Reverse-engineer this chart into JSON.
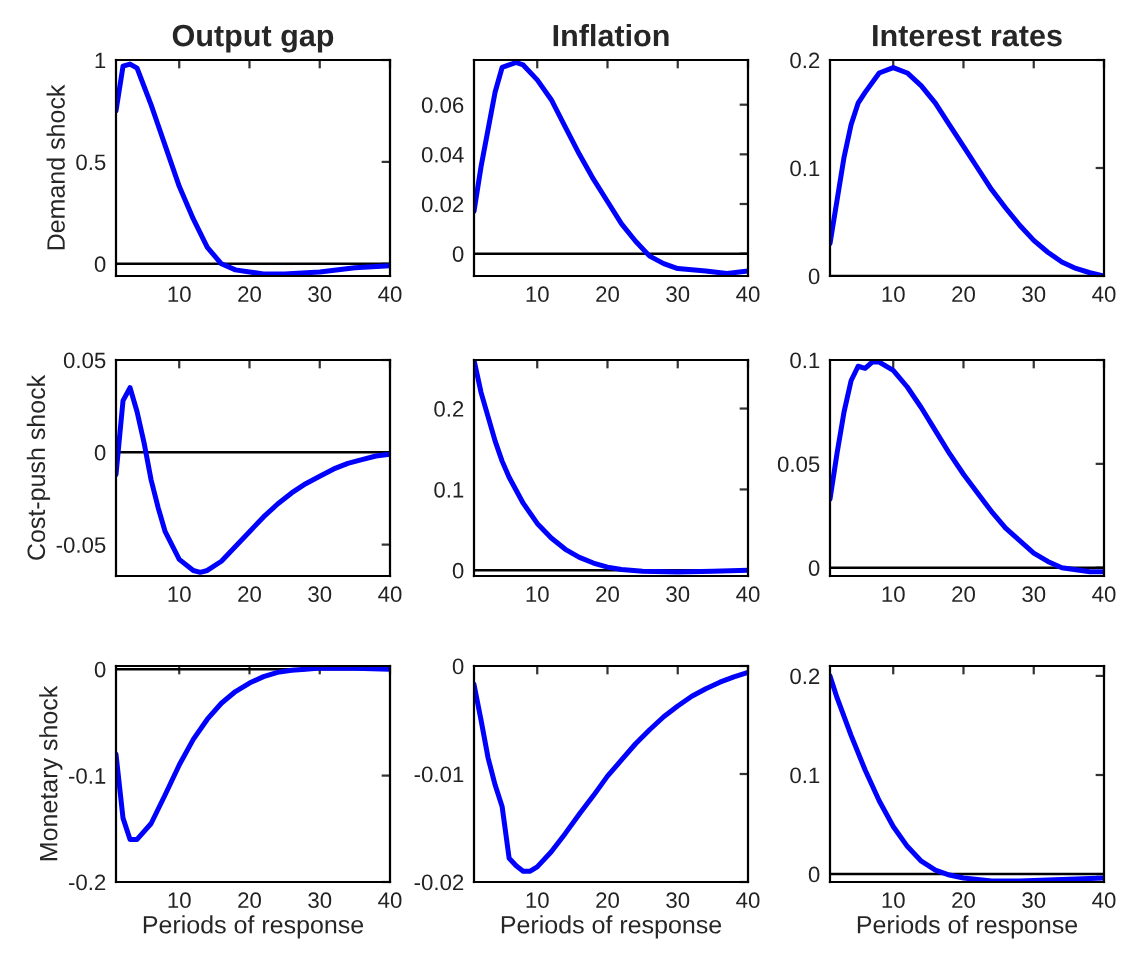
{
  "chart_data": [
    {
      "type": "line",
      "title": "Output gap",
      "ylabel": "Demand shock",
      "x": [
        1,
        2,
        3,
        4,
        5,
        6,
        7,
        8,
        10,
        12,
        14,
        16,
        18,
        20,
        22,
        25,
        30,
        35,
        40
      ],
      "series": [
        {
          "color": "#0000ff",
          "values": [
            0.75,
            0.97,
            0.98,
            0.96,
            0.87,
            0.78,
            0.68,
            0.58,
            0.38,
            0.22,
            0.08,
            0,
            -0.03,
            -0.04,
            -0.05,
            -0.05,
            -0.04,
            -0.02,
            -0.01
          ]
        }
      ],
      "xlim": [
        1,
        40
      ],
      "xticks": [
        10,
        20,
        30,
        40
      ],
      "ylim": [
        -0.06,
        1
      ],
      "yticks": [
        0,
        0.5,
        1
      ],
      "ref_lines": [
        {
          "axis": "y",
          "value": 0,
          "color": "#000000"
        }
      ],
      "grid": false
    },
    {
      "type": "line",
      "title": "Inflation",
      "x": [
        1,
        2,
        3,
        4,
        5,
        6,
        7,
        8,
        10,
        12,
        14,
        16,
        18,
        20,
        22,
        24,
        26,
        28,
        30,
        34,
        37,
        40
      ],
      "series": [
        {
          "color": "#0000ff",
          "values": [
            0.017,
            0.035,
            0.05,
            0.065,
            0.075,
            0.076,
            0.077,
            0.076,
            0.07,
            0.062,
            0.051,
            0.04,
            0.03,
            0.021,
            0.012,
            0.005,
            -0.001,
            -0.004,
            -0.006,
            -0.007,
            -0.008,
            -0.007
          ]
        }
      ],
      "xlim": [
        1,
        40
      ],
      "xticks": [
        10,
        20,
        30,
        40
      ],
      "ylim": [
        -0.009,
        0.078
      ],
      "yticks": [
        0,
        0.02,
        0.04,
        0.06
      ],
      "ref_lines": [
        {
          "axis": "y",
          "value": 0,
          "color": "#000000"
        }
      ],
      "grid": false
    },
    {
      "type": "line",
      "title": "Interest rates",
      "x": [
        1,
        2,
        3,
        4,
        5,
        6,
        8,
        10,
        12,
        14,
        16,
        18,
        20,
        22,
        24,
        26,
        28,
        30,
        32,
        34,
        36,
        38,
        40
      ],
      "series": [
        {
          "color": "#0000ff",
          "values": [
            0.03,
            0.07,
            0.11,
            0.14,
            0.16,
            0.17,
            0.188,
            0.193,
            0.188,
            0.176,
            0.16,
            0.14,
            0.12,
            0.1,
            0.08,
            0.063,
            0.047,
            0.033,
            0.022,
            0.013,
            0.007,
            0.003,
            0
          ]
        }
      ],
      "xlim": [
        1,
        40
      ],
      "xticks": [
        10,
        20,
        30,
        40
      ],
      "ylim": [
        0,
        0.2
      ],
      "yticks": [
        0,
        0.1,
        0.2
      ],
      "ref_lines": [
        {
          "axis": "y",
          "value": 0,
          "color": "#000000"
        }
      ],
      "grid": false
    },
    {
      "type": "line",
      "ylabel": "Cost-push shock",
      "x": [
        1,
        2,
        3,
        4,
        5,
        6,
        7,
        8,
        10,
        12,
        13,
        14,
        16,
        18,
        20,
        22,
        24,
        26,
        28,
        30,
        32,
        34,
        36,
        38,
        40
      ],
      "series": [
        {
          "color": "#0000ff",
          "values": [
            -0.012,
            0.028,
            0.035,
            0.022,
            0.005,
            -0.015,
            -0.03,
            -0.043,
            -0.058,
            -0.064,
            -0.065,
            -0.064,
            -0.059,
            -0.051,
            -0.043,
            -0.035,
            -0.028,
            -0.022,
            -0.017,
            -0.013,
            -0.009,
            -0.006,
            -0.004,
            -0.002,
            -0.001
          ]
        }
      ],
      "xlim": [
        1,
        40
      ],
      "xticks": [
        10,
        20,
        30,
        40
      ],
      "ylim": [
        -0.067,
        0.05
      ],
      "yticks": [
        -0.05,
        0,
        0.05
      ],
      "ref_lines": [
        {
          "axis": "y",
          "value": 0,
          "color": "#000000"
        }
      ],
      "grid": false
    },
    {
      "type": "line",
      "x": [
        1,
        2,
        3,
        4,
        5,
        6,
        8,
        10,
        12,
        14,
        16,
        18,
        20,
        22,
        25,
        30,
        35,
        40
      ],
      "series": [
        {
          "color": "#0000ff",
          "values": [
            0.26,
            0.22,
            0.19,
            0.16,
            0.135,
            0.115,
            0.083,
            0.058,
            0.04,
            0.026,
            0.016,
            0.009,
            0.004,
            0.001,
            -0.001,
            -0.002,
            -0.001,
            0
          ]
        }
      ],
      "xlim": [
        1,
        40
      ],
      "xticks": [
        10,
        20,
        30,
        40
      ],
      "ylim": [
        -0.007,
        0.26
      ],
      "yticks": [
        0,
        0.1,
        0.2
      ],
      "ref_lines": [
        {
          "axis": "y",
          "value": 0,
          "color": "#000000"
        }
      ],
      "grid": false
    },
    {
      "type": "line",
      "x": [
        1,
        2,
        3,
        4,
        5,
        6,
        7,
        8,
        10,
        12,
        14,
        16,
        18,
        20,
        22,
        24,
        26,
        28,
        30,
        32,
        34,
        36,
        38,
        40
      ],
      "series": [
        {
          "color": "#0000ff",
          "values": [
            0.033,
            0.055,
            0.075,
            0.09,
            0.097,
            0.096,
            0.099,
            0.099,
            0.095,
            0.087,
            0.077,
            0.066,
            0.055,
            0.045,
            0.036,
            0.027,
            0.019,
            0.013,
            0.007,
            0.003,
            0,
            -0.001,
            -0.002,
            -0.002
          ]
        }
      ],
      "xlim": [
        1,
        40
      ],
      "xticks": [
        10,
        20,
        30,
        40
      ],
      "ylim": [
        -0.004,
        0.1
      ],
      "yticks": [
        0,
        0.05,
        0.1
      ],
      "ref_lines": [
        {
          "axis": "y",
          "value": 0,
          "color": "#000000"
        }
      ],
      "grid": false
    },
    {
      "type": "line",
      "ylabel": "Monetary shock",
      "xlabel": "Periods of response",
      "x": [
        1,
        2,
        3,
        4,
        6,
        8,
        10,
        12,
        14,
        16,
        18,
        20,
        22,
        24,
        26,
        28,
        30,
        35,
        40
      ],
      "series": [
        {
          "color": "#0000ff",
          "values": [
            -0.08,
            -0.14,
            -0.16,
            -0.16,
            -0.145,
            -0.118,
            -0.09,
            -0.066,
            -0.047,
            -0.032,
            -0.021,
            -0.013,
            -0.007,
            -0.003,
            -0.001,
            0,
            0.001,
            0.001,
            0
          ]
        }
      ],
      "xlim": [
        1,
        40
      ],
      "xticks": [
        10,
        20,
        30,
        40
      ],
      "ylim": [
        -0.2,
        0.003
      ],
      "yticks": [
        -0.2,
        -0.1,
        0
      ],
      "ref_lines": [
        {
          "axis": "y",
          "value": 0,
          "color": "#000000"
        }
      ],
      "grid": false
    },
    {
      "type": "line",
      "xlabel": "Periods of response",
      "x": [
        1,
        2,
        3,
        4,
        5,
        6,
        7,
        8,
        9,
        10,
        12,
        14,
        16,
        18,
        20,
        22,
        24,
        26,
        28,
        30,
        32,
        34,
        36,
        38,
        40
      ],
      "series": [
        {
          "color": "#0000ff",
          "values": [
            -0.0017,
            -0.005,
            -0.0085,
            -0.011,
            -0.013,
            -0.0178,
            -0.0185,
            -0.019,
            -0.019,
            -0.0186,
            -0.0172,
            -0.0155,
            -0.0137,
            -0.012,
            -0.0102,
            -0.0087,
            -0.0072,
            -0.0059,
            -0.0047,
            -0.0037,
            -0.0028,
            -0.0021,
            -0.0015,
            -0.001,
            -0.0006
          ]
        }
      ],
      "xlim": [
        1,
        40
      ],
      "xticks": [
        10,
        20,
        30,
        40
      ],
      "ylim": [
        -0.02,
        0
      ],
      "yticks": [
        -0.02,
        -0.01,
        0
      ],
      "grid": false
    },
    {
      "type": "line",
      "xlabel": "Periods of response",
      "x": [
        1,
        2,
        4,
        6,
        8,
        10,
        12,
        14,
        16,
        18,
        20,
        24,
        28,
        32,
        36,
        40
      ],
      "series": [
        {
          "color": "#0000ff",
          "values": [
            0.2,
            0.178,
            0.14,
            0.105,
            0.074,
            0.048,
            0.028,
            0.013,
            0.004,
            -0.001,
            -0.004,
            -0.007,
            -0.007,
            -0.006,
            -0.005,
            -0.004
          ]
        }
      ],
      "xlim": [
        1,
        40
      ],
      "xticks": [
        10,
        20,
        30,
        40
      ],
      "ylim": [
        -0.008,
        0.21
      ],
      "yticks": [
        0,
        0.1,
        0.2
      ],
      "ref_lines": [
        {
          "axis": "y",
          "value": 0,
          "color": "#000000"
        }
      ],
      "grid": false
    }
  ]
}
